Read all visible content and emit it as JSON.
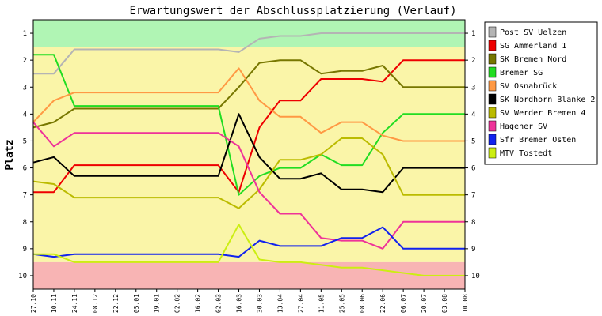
{
  "chart_data": {
    "type": "line",
    "title": "Erwartungswert der Abschlussplatzierung (Verlauf)",
    "ylabel": "Platz",
    "xlabel": "",
    "ylim": [
      10.5,
      0.5
    ],
    "y_ticks": [
      "1",
      "2",
      "3",
      "4",
      "5",
      "6",
      "7",
      "8",
      "9",
      "10"
    ],
    "x": [
      "27.10",
      "10.11",
      "24.11",
      "08.12",
      "22.12",
      "05.01",
      "19.01",
      "02.02",
      "16.02",
      "02.03",
      "16.03",
      "30.03",
      "13.04",
      "27.04",
      "11.05",
      "25.05",
      "08.06",
      "22.06",
      "06.07",
      "20.07",
      "03.08",
      "10.08"
    ],
    "zones": [
      {
        "from": 0.5,
        "to": 1.5,
        "color": "#b0f5b4"
      },
      {
        "from": 1.5,
        "to": 9.5,
        "color": "#faf5a8"
      },
      {
        "from": 9.5,
        "to": 10.5,
        "color": "#f8b4b4"
      }
    ],
    "series": [
      {
        "name": "Post SV Uelzen",
        "color": "#b4b4b4",
        "values": [
          2.5,
          2.5,
          1.6,
          1.6,
          1.6,
          1.6,
          1.6,
          1.6,
          1.6,
          1.6,
          1.7,
          1.2,
          1.1,
          1.1,
          1.0,
          1.0,
          1.0,
          1.0,
          1.0,
          1.0,
          1.0,
          1.0
        ]
      },
      {
        "name": "SG Ammerland 1",
        "color": "#ee0000",
        "values": [
          6.9,
          6.9,
          5.9,
          5.9,
          5.9,
          5.9,
          5.9,
          5.9,
          5.9,
          5.9,
          6.9,
          4.5,
          3.5,
          3.5,
          2.7,
          2.7,
          2.7,
          2.8,
          2.0,
          2.0,
          2.0,
          2.0
        ]
      },
      {
        "name": "SK Bremen Nord",
        "color": "#777700",
        "values": [
          4.5,
          4.3,
          3.8,
          3.8,
          3.8,
          3.8,
          3.8,
          3.8,
          3.8,
          3.8,
          3.0,
          2.1,
          2.0,
          2.0,
          2.5,
          2.4,
          2.4,
          2.2,
          3.0,
          3.0,
          3.0,
          3.0
        ]
      },
      {
        "name": "Bremer SG",
        "color": "#22dd22",
        "values": [
          1.8,
          1.8,
          3.7,
          3.7,
          3.7,
          3.7,
          3.7,
          3.7,
          3.7,
          3.7,
          7.0,
          6.3,
          6.0,
          6.0,
          5.5,
          5.9,
          5.9,
          4.7,
          4.0,
          4.0,
          4.0,
          4.0
        ]
      },
      {
        "name": "SV Osnabrück",
        "color": "#ff9944",
        "values": [
          4.3,
          3.5,
          3.2,
          3.2,
          3.2,
          3.2,
          3.2,
          3.2,
          3.2,
          3.2,
          2.3,
          3.5,
          4.1,
          4.1,
          4.7,
          4.3,
          4.3,
          4.8,
          5.0,
          5.0,
          5.0,
          5.0
        ]
      },
      {
        "name": "SK Nordhorn Blanke 2",
        "color": "#000000",
        "values": [
          5.8,
          5.6,
          6.3,
          6.3,
          6.3,
          6.3,
          6.3,
          6.3,
          6.3,
          6.3,
          4.0,
          5.6,
          6.4,
          6.4,
          6.2,
          6.8,
          6.8,
          6.9,
          6.0,
          6.0,
          6.0,
          6.0
        ]
      },
      {
        "name": "SV Werder Bremen 4",
        "color": "#bbbb00",
        "values": [
          6.5,
          6.6,
          7.1,
          7.1,
          7.1,
          7.1,
          7.1,
          7.1,
          7.1,
          7.1,
          7.5,
          6.8,
          5.7,
          5.7,
          5.5,
          4.9,
          4.9,
          5.5,
          7.0,
          7.0,
          7.0,
          7.0
        ]
      },
      {
        "name": "Hagener SV",
        "color": "#ee3399",
        "values": [
          4.3,
          5.2,
          4.7,
          4.7,
          4.7,
          4.7,
          4.7,
          4.7,
          4.7,
          4.7,
          5.2,
          6.9,
          7.7,
          7.7,
          8.6,
          8.7,
          8.7,
          9.0,
          8.0,
          8.0,
          8.0,
          8.0
        ]
      },
      {
        "name": "Sfr Bremer Osten",
        "color": "#1122ee",
        "values": [
          9.2,
          9.3,
          9.2,
          9.2,
          9.2,
          9.2,
          9.2,
          9.2,
          9.2,
          9.2,
          9.3,
          8.7,
          8.9,
          8.9,
          8.9,
          8.6,
          8.6,
          8.2,
          9.0,
          9.0,
          9.0,
          9.0
        ]
      },
      {
        "name": "MTV Tostedt",
        "color": "#ccee11",
        "values": [
          9.2,
          9.2,
          9.5,
          9.5,
          9.5,
          9.5,
          9.5,
          9.5,
          9.5,
          9.5,
          8.1,
          9.4,
          9.5,
          9.5,
          9.6,
          9.7,
          9.7,
          9.8,
          9.9,
          10.0,
          10.0,
          10.0
        ]
      }
    ]
  }
}
